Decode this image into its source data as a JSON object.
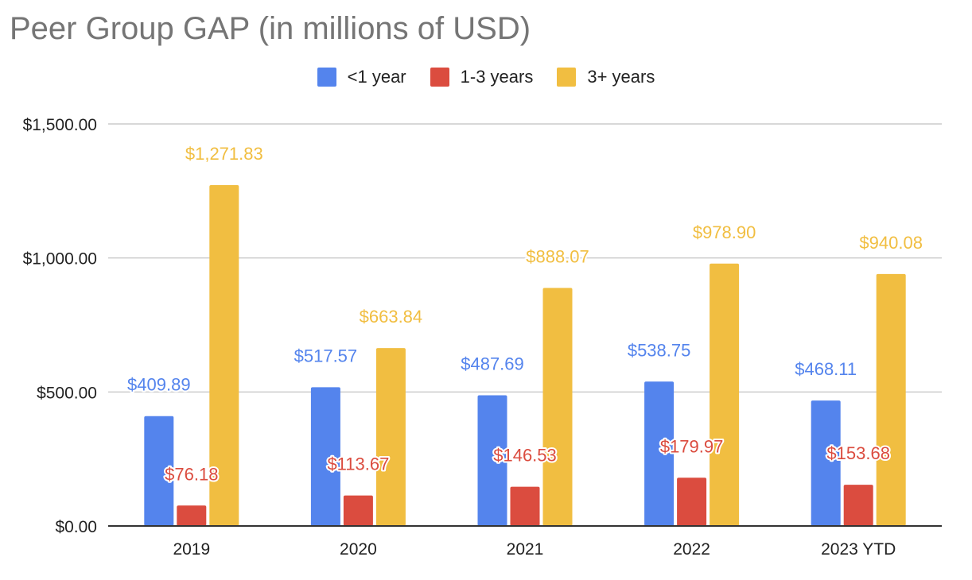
{
  "chart_data": {
    "type": "bar",
    "title": "Peer Group GAP  (in millions of USD)",
    "xlabel": "",
    "ylabel": "",
    "categories": [
      "2019",
      "2020",
      "2021",
      "2022",
      "2023 YTD"
    ],
    "series": [
      {
        "name": "<1 year",
        "color": "#5484ED",
        "values": [
          409.89,
          517.57,
          487.69,
          538.75,
          468.11
        ],
        "labels": [
          "$409.89",
          "$517.57",
          "$487.69",
          "$538.75",
          "$468.11"
        ]
      },
      {
        "name": "1-3 years",
        "color": "#DB4C3F",
        "values": [
          76.18,
          113.67,
          146.53,
          179.97,
          153.68
        ],
        "labels": [
          "$76.18",
          "$113.67",
          "$146.53",
          "$179.97",
          "$153.68"
        ]
      },
      {
        "name": "3+ years",
        "color": "#F1BE41",
        "values": [
          1271.83,
          663.84,
          888.07,
          978.9,
          940.08
        ],
        "labels": [
          "$1,271.83",
          "$663.84",
          "$888.07",
          "$978.90",
          "$940.08"
        ]
      }
    ],
    "ylim": [
      0,
      1500
    ],
    "yticks": [
      0,
      500,
      1000,
      1500
    ],
    "ytick_labels": [
      "$0.00",
      "$500.00",
      "$1,000.00",
      "$1,500.00"
    ],
    "grid": true,
    "legend_position": "top"
  }
}
